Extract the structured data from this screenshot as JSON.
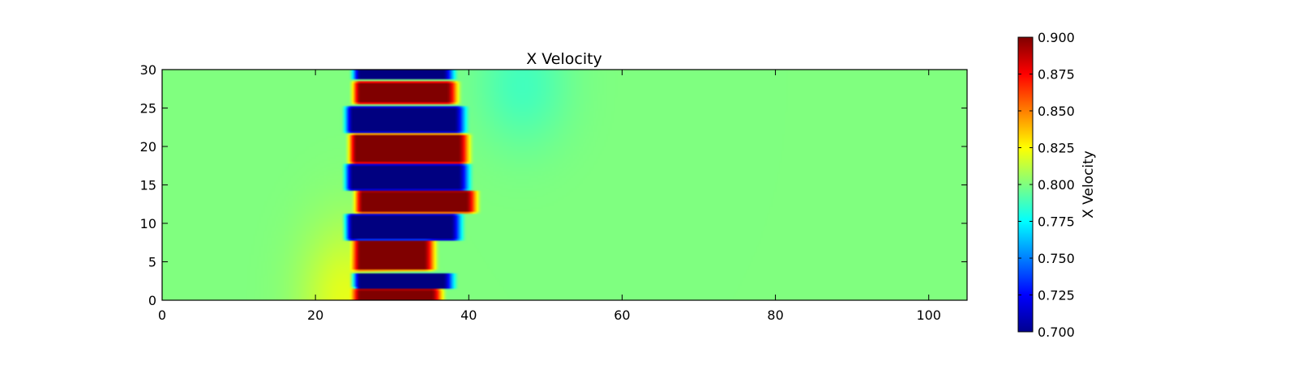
{
  "chart_data": {
    "type": "heatmap",
    "title": "X Velocity",
    "xlabel": "",
    "ylabel": "",
    "xlim": [
      0,
      105
    ],
    "ylim": [
      0,
      30
    ],
    "x_ticks": [
      0,
      20,
      40,
      60,
      80,
      100
    ],
    "y_ticks": [
      0,
      5,
      10,
      15,
      20,
      25,
      30
    ],
    "colormap": "jet",
    "colorbar": {
      "label": "X Velocity",
      "range": [
        0.7,
        0.9
      ],
      "ticks": [
        "0.900",
        "0.875",
        "0.850",
        "0.825",
        "0.800",
        "0.775",
        "0.750",
        "0.725",
        "0.700"
      ]
    },
    "background_value": 0.8,
    "bands": [
      {
        "value": 0.9,
        "x_start": 25.5,
        "x_end": 35.5,
        "y_center": 0.8,
        "half_height": 1.0
      },
      {
        "value": 0.7,
        "x_start": 25.5,
        "x_end": 37.0,
        "y_center": 2.5,
        "half_height": 1.1
      },
      {
        "value": 0.9,
        "x_start": 25.5,
        "x_end": 34.5,
        "y_center": 6.0,
        "half_height": 2.2
      },
      {
        "value": 0.7,
        "x_start": 24.5,
        "x_end": 38.0,
        "y_center": 9.5,
        "half_height": 1.8
      },
      {
        "value": 0.9,
        "x_start": 25.8,
        "x_end": 40.0,
        "y_center": 12.8,
        "half_height": 1.5
      },
      {
        "value": 0.7,
        "x_start": 24.5,
        "x_end": 39.0,
        "y_center": 16.0,
        "half_height": 1.8
      },
      {
        "value": 0.9,
        "x_start": 25.0,
        "x_end": 39.0,
        "y_center": 19.7,
        "half_height": 2.0
      },
      {
        "value": 0.7,
        "x_start": 24.5,
        "x_end": 38.5,
        "y_center": 23.5,
        "half_height": 1.8
      },
      {
        "value": 0.9,
        "x_start": 25.5,
        "x_end": 37.5,
        "y_center": 27.0,
        "half_height": 1.5
      },
      {
        "value": 0.7,
        "x_start": 25.5,
        "x_end": 37.0,
        "y_center": 29.5,
        "half_height": 0.8
      }
    ]
  }
}
